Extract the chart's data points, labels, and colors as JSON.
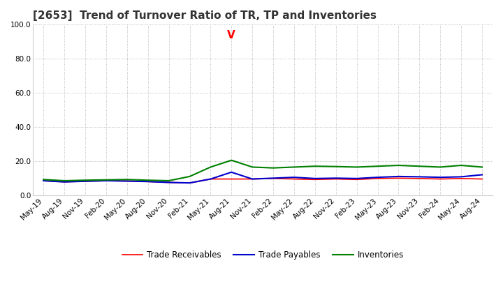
{
  "title": "[2653]  Trend of Turnover Ratio of TR, TP and Inventories",
  "ylim": [
    0.0,
    100.0
  ],
  "yticks": [
    0.0,
    20.0,
    40.0,
    60.0,
    80.0,
    100.0
  ],
  "x_labels": [
    "May-19",
    "Aug-19",
    "Nov-19",
    "Feb-20",
    "May-20",
    "Aug-20",
    "Nov-20",
    "Feb-21",
    "May-21",
    "Aug-21",
    "Nov-21",
    "Feb-22",
    "May-22",
    "Aug-22",
    "Nov-22",
    "Feb-23",
    "May-23",
    "Aug-23",
    "Nov-23",
    "Feb-24",
    "May-24",
    "Aug-24"
  ],
  "trade_receivables": [
    8.5,
    7.8,
    8.2,
    8.5,
    8.3,
    8.0,
    7.5,
    7.2,
    9.5,
    9.5,
    9.5,
    9.8,
    9.5,
    9.2,
    9.5,
    9.2,
    9.8,
    10.0,
    9.8,
    9.5,
    9.8,
    9.5
  ],
  "trade_payables": [
    8.5,
    7.8,
    8.2,
    8.5,
    8.3,
    8.0,
    7.5,
    7.2,
    9.5,
    13.5,
    9.5,
    10.0,
    10.5,
    9.8,
    10.0,
    9.8,
    10.5,
    11.0,
    10.8,
    10.5,
    10.8,
    12.0
  ],
  "inventories": [
    9.2,
    8.5,
    8.8,
    9.0,
    9.2,
    8.8,
    8.5,
    11.0,
    16.5,
    20.5,
    16.5,
    16.0,
    16.5,
    17.0,
    16.8,
    16.5,
    17.0,
    17.5,
    17.0,
    16.5,
    17.5,
    16.5
  ],
  "spike_index": 9,
  "spike_value": 97.0,
  "tr_color": "#ff0000",
  "tp_color": "#0000cc",
  "inv_color": "#008000",
  "background_color": "#ffffff",
  "grid_color": "#999999",
  "legend_labels": [
    "Trade Receivables",
    "Trade Payables",
    "Inventories"
  ],
  "title_fontsize": 11,
  "tick_fontsize": 7.5
}
